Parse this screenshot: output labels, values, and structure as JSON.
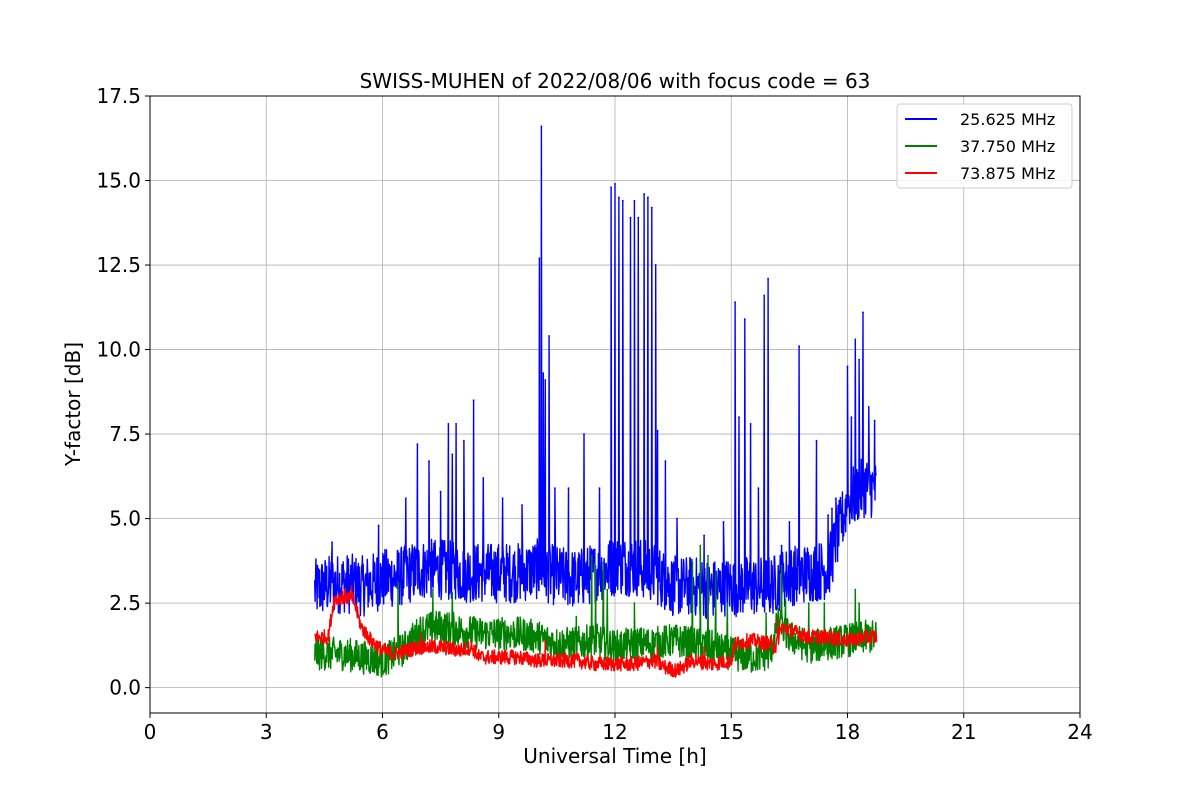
{
  "chart_data": {
    "type": "line",
    "title": "SWISS-MUHEN of 2022/08/06 with focus code = 63",
    "xlabel": "Universal Time [h]",
    "ylabel": "Y-factor [dB]",
    "xlim": [
      0,
      24
    ],
    "ylim": [
      -0.75,
      17.5
    ],
    "xticks": [
      0,
      3,
      6,
      9,
      12,
      15,
      18,
      21,
      24
    ],
    "xtick_labels": [
      "0",
      "3",
      "6",
      "9",
      "12",
      "15",
      "18",
      "21",
      "24"
    ],
    "yticks": [
      0,
      2.5,
      5,
      7.5,
      10,
      12.5,
      15,
      17.5
    ],
    "ytick_labels": [
      "0.0",
      "2.5",
      "5.0",
      "7.5",
      "10.0",
      "12.5",
      "15.0",
      "17.5"
    ],
    "grid": true,
    "legend_position": "top-right",
    "series": [
      {
        "name": "25.625 MHz",
        "color": "#0000ff",
        "baseline": [
          [
            4.25,
            2.9
          ],
          [
            4.5,
            3.0
          ],
          [
            5.0,
            3.1
          ],
          [
            5.5,
            3.0
          ],
          [
            6.0,
            3.2
          ],
          [
            6.5,
            3.3
          ],
          [
            7.0,
            3.5
          ],
          [
            7.5,
            3.5
          ],
          [
            8.0,
            3.4
          ],
          [
            8.5,
            3.4
          ],
          [
            9.0,
            3.4
          ],
          [
            9.5,
            3.4
          ],
          [
            10.0,
            3.5
          ],
          [
            10.5,
            3.3
          ],
          [
            11.0,
            3.2
          ],
          [
            11.5,
            3.4
          ],
          [
            12.0,
            3.6
          ],
          [
            12.5,
            3.6
          ],
          [
            13.0,
            3.4
          ],
          [
            13.5,
            3.0
          ],
          [
            14.0,
            3.0
          ],
          [
            14.5,
            2.9
          ],
          [
            15.0,
            3.0
          ],
          [
            15.5,
            3.0
          ],
          [
            16.0,
            3.0
          ],
          [
            16.5,
            3.3
          ],
          [
            17.0,
            3.4
          ],
          [
            17.5,
            3.5
          ],
          [
            18.0,
            5.5
          ],
          [
            18.5,
            6.0
          ],
          [
            18.75,
            5.8
          ]
        ],
        "noise": 0.9,
        "spikes": [
          [
            4.7,
            4.3
          ],
          [
            5.9,
            4.8
          ],
          [
            6.6,
            5.6
          ],
          [
            6.9,
            7.2
          ],
          [
            7.2,
            6.7
          ],
          [
            7.5,
            5.8
          ],
          [
            7.7,
            7.8
          ],
          [
            7.8,
            6.9
          ],
          [
            7.9,
            7.8
          ],
          [
            8.1,
            7.3
          ],
          [
            8.35,
            8.5
          ],
          [
            8.6,
            6.2
          ],
          [
            9.1,
            5.6
          ],
          [
            9.6,
            5.4
          ],
          [
            10.05,
            12.7
          ],
          [
            10.1,
            16.6
          ],
          [
            10.15,
            9.3
          ],
          [
            10.2,
            9.1
          ],
          [
            10.3,
            10.4
          ],
          [
            10.45,
            5.9
          ],
          [
            10.8,
            5.9
          ],
          [
            11.2,
            7.5
          ],
          [
            11.6,
            5.9
          ],
          [
            11.9,
            14.8
          ],
          [
            12.0,
            14.9
          ],
          [
            12.1,
            14.5
          ],
          [
            12.2,
            14.4
          ],
          [
            12.4,
            13.9
          ],
          [
            12.5,
            14.4
          ],
          [
            12.6,
            13.9
          ],
          [
            12.75,
            14.6
          ],
          [
            12.85,
            14.5
          ],
          [
            12.95,
            14.2
          ],
          [
            13.05,
            12.5
          ],
          [
            13.1,
            7.6
          ],
          [
            13.3,
            6.7
          ],
          [
            13.6,
            5.0
          ],
          [
            14.3,
            4.5
          ],
          [
            14.8,
            4.9
          ],
          [
            15.1,
            11.4
          ],
          [
            15.2,
            8.0
          ],
          [
            15.35,
            10.9
          ],
          [
            15.5,
            7.8
          ],
          [
            15.7,
            5.9
          ],
          [
            15.85,
            11.6
          ],
          [
            15.95,
            12.1
          ],
          [
            16.3,
            4.2
          ],
          [
            16.5,
            4.9
          ],
          [
            16.75,
            10.1
          ],
          [
            17.2,
            7.3
          ],
          [
            17.5,
            5.1
          ],
          [
            17.6,
            5.3
          ],
          [
            17.7,
            5.6
          ],
          [
            18.0,
            9.5
          ],
          [
            18.1,
            8.0
          ],
          [
            18.2,
            10.3
          ],
          [
            18.3,
            9.7
          ],
          [
            18.4,
            11.1
          ],
          [
            18.55,
            8.3
          ],
          [
            18.7,
            7.9
          ]
        ]
      },
      {
        "name": "37.750 MHz",
        "color": "#008000",
        "baseline": [
          [
            4.25,
            1.0
          ],
          [
            5.0,
            1.0
          ],
          [
            5.5,
            0.9
          ],
          [
            6.0,
            0.8
          ],
          [
            6.5,
            1.1
          ],
          [
            7.0,
            1.7
          ],
          [
            7.5,
            1.8
          ],
          [
            8.0,
            1.7
          ],
          [
            8.5,
            1.6
          ],
          [
            9.0,
            1.6
          ],
          [
            9.5,
            1.6
          ],
          [
            10.0,
            1.5
          ],
          [
            10.5,
            1.3
          ],
          [
            11.0,
            1.3
          ],
          [
            11.5,
            1.4
          ],
          [
            12.0,
            1.2
          ],
          [
            12.5,
            1.3
          ],
          [
            13.0,
            1.3
          ],
          [
            13.5,
            1.4
          ],
          [
            14.0,
            1.3
          ],
          [
            14.5,
            1.2
          ],
          [
            15.0,
            1.0
          ],
          [
            15.5,
            0.9
          ],
          [
            16.0,
            1.0
          ],
          [
            16.2,
            1.9
          ],
          [
            16.5,
            1.5
          ],
          [
            17.0,
            1.2
          ],
          [
            17.5,
            1.3
          ],
          [
            18.0,
            1.4
          ],
          [
            18.5,
            1.5
          ],
          [
            18.75,
            1.5
          ]
        ],
        "noise": 0.5,
        "spikes": [
          [
            6.4,
            3.1
          ],
          [
            7.3,
            2.9
          ],
          [
            7.8,
            2.8
          ],
          [
            11.0,
            2.1
          ],
          [
            11.4,
            3.9
          ],
          [
            11.5,
            3.6
          ],
          [
            11.7,
            3.7
          ],
          [
            11.8,
            2.9
          ],
          [
            12.5,
            2.5
          ],
          [
            14.0,
            3.7
          ],
          [
            14.2,
            4.2
          ],
          [
            14.4,
            3.9
          ],
          [
            14.6,
            3.4
          ],
          [
            14.9,
            2.5
          ],
          [
            15.9,
            2.2
          ],
          [
            16.3,
            3.6
          ],
          [
            16.4,
            2.6
          ],
          [
            17.0,
            2.5
          ],
          [
            17.4,
            2.5
          ],
          [
            18.2,
            2.9
          ],
          [
            18.3,
            2.5
          ]
        ]
      },
      {
        "name": "73.875 MHz",
        "color": "#ff0000",
        "baseline": [
          [
            4.25,
            1.5
          ],
          [
            4.6,
            1.5
          ],
          [
            4.75,
            2.6
          ],
          [
            5.0,
            2.7
          ],
          [
            5.25,
            2.6
          ],
          [
            5.45,
            1.8
          ],
          [
            5.7,
            1.4
          ],
          [
            6.0,
            1.1
          ],
          [
            6.3,
            1.0
          ],
          [
            6.6,
            1.1
          ],
          [
            7.0,
            1.2
          ],
          [
            7.5,
            1.2
          ],
          [
            8.0,
            1.1
          ],
          [
            8.3,
            1.2
          ],
          [
            8.5,
            0.9
          ],
          [
            9.0,
            0.9
          ],
          [
            9.5,
            0.9
          ],
          [
            10.0,
            0.8
          ],
          [
            10.5,
            0.8
          ],
          [
            11.0,
            0.8
          ],
          [
            11.5,
            0.7
          ],
          [
            12.0,
            0.7
          ],
          [
            12.5,
            0.7
          ],
          [
            13.0,
            0.8
          ],
          [
            13.3,
            0.6
          ],
          [
            13.6,
            0.5
          ],
          [
            14.0,
            0.8
          ],
          [
            14.5,
            0.7
          ],
          [
            15.0,
            0.8
          ],
          [
            15.1,
            1.3
          ],
          [
            15.5,
            1.4
          ],
          [
            16.0,
            1.3
          ],
          [
            16.15,
            1.2
          ],
          [
            16.3,
            1.8
          ],
          [
            16.5,
            1.7
          ],
          [
            17.0,
            1.5
          ],
          [
            17.5,
            1.5
          ],
          [
            18.0,
            1.4
          ],
          [
            18.5,
            1.5
          ],
          [
            18.75,
            1.5
          ]
        ],
        "noise": 0.22,
        "spikes": [
          [
            5.2,
            3.0
          ],
          [
            7.0,
            1.6
          ],
          [
            10.2,
            1.4
          ],
          [
            13.1,
            1.2
          ],
          [
            14.3,
            1.2
          ],
          [
            16.2,
            2.0
          ]
        ]
      }
    ]
  }
}
